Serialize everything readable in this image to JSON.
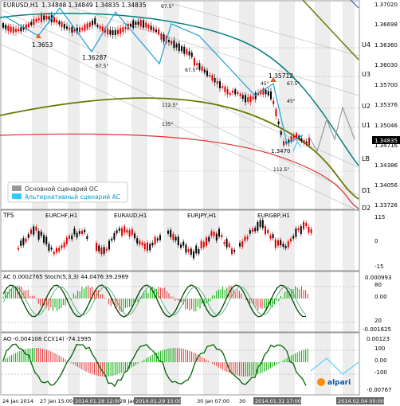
{
  "window": {
    "symbol": "EURUSD,H1",
    "ohlc": "1.34848  1.34849  1.34835  1.34835"
  },
  "main_price_labels": [
    "1.37020",
    "1.36698",
    "1.36360",
    "1.36030",
    "1.35700",
    "1.35376",
    "1.35046",
    "1.34835",
    "1.34716",
    "1.34386",
    "1.34056",
    "1.33726"
  ],
  "current_price": "1.34835",
  "levels": [
    {
      "name": "U4",
      "color": "#000000"
    },
    {
      "name": "U3",
      "color": "#000000"
    },
    {
      "name": "U2",
      "color": "#000000"
    },
    {
      "name": "U1",
      "color": "#000000"
    },
    {
      "name": "LB",
      "color": "#000000"
    },
    {
      "name": "D1",
      "color": "#000000"
    },
    {
      "name": "D2",
      "color": "#000000"
    }
  ],
  "annotations": {
    "low1": "1.3653",
    "low2": "1.36287",
    "high1": "1.35712",
    "low3": "1.3470",
    "angles": [
      "67.5°",
      "67.5°",
      "67.5°",
      "45°",
      "67.5°",
      "112.5°",
      "45°",
      "135°",
      "112.5°"
    ]
  },
  "legend": {
    "main": "Основной сценарий ОС",
    "alt": "Альтернативный сценарий АС"
  },
  "tfs_panel": {
    "label": "TFS",
    "pairs": [
      "EURCHF,H1",
      "EURAUD,H1",
      "EURJPY,H1",
      "EURGBP,H1"
    ],
    "scale": [
      "115",
      "0",
      "-15"
    ]
  },
  "ac_panel": {
    "title": "AC 0.0002765  Stoch(5,3,3) 44.0476 39.2969",
    "scale": [
      "0.000993",
      "80",
      "0.00",
      "20",
      "-0.001625"
    ]
  },
  "ao_panel": {
    "title": "AO -0.004108  CCI(14) -74.1995",
    "scale": [
      "0.00123",
      "100",
      "0.00",
      "-100",
      "-0.00767"
    ],
    "brand": "alpari"
  },
  "time_axis": [
    "24 Jan 2014",
    "27 Jan 15:00",
    "2014.01.28 12:00",
    "28 Jan 13:00",
    "2014.01.29 15:00",
    "30 Jan 07:00",
    "30",
    "2014.01.31 17:00",
    "2014.02.04 00:00"
  ],
  "colors": {
    "bull": "#000000",
    "bear": "#e00000",
    "teal": "#008080",
    "olive": "#6b7a00",
    "red_ma": "#e03030",
    "zigzag": "#1aa0d8",
    "scenario_main": "#999999",
    "scenario_alt": "#33ccff"
  }
}
